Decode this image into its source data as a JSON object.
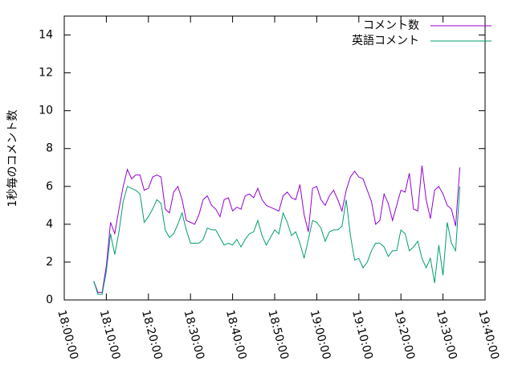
{
  "chart_data": {
    "type": "line",
    "y_label": "1秒毎のコメント数",
    "x": [
      "18:07:00",
      "18:08:00",
      "18:09:00",
      "18:10:00",
      "18:11:00",
      "18:12:00",
      "18:13:00",
      "18:14:00",
      "18:15:00",
      "18:16:00",
      "18:17:00",
      "18:18:00",
      "18:19:00",
      "18:20:00",
      "18:21:00",
      "18:22:00",
      "18:23:00",
      "18:24:00",
      "18:25:00",
      "18:26:00",
      "18:27:00",
      "18:28:00",
      "18:29:00",
      "18:30:00",
      "18:31:00",
      "18:32:00",
      "18:33:00",
      "18:34:00",
      "18:35:00",
      "18:36:00",
      "18:37:00",
      "18:38:00",
      "18:39:00",
      "18:40:00",
      "18:41:00",
      "18:42:00",
      "18:43:00",
      "18:44:00",
      "18:45:00",
      "18:46:00",
      "18:47:00",
      "18:48:00",
      "18:49:00",
      "18:50:00",
      "18:51:00",
      "18:52:00",
      "18:53:00",
      "18:54:00",
      "18:55:00",
      "18:56:00",
      "18:57:00",
      "18:58:00",
      "18:59:00",
      "19:00:00",
      "19:01:00",
      "19:02:00",
      "19:03:00",
      "19:04:00",
      "19:05:00",
      "19:06:00",
      "19:07:00",
      "19:08:00",
      "19:09:00",
      "19:10:00",
      "19:11:00",
      "19:12:00",
      "19:13:00",
      "19:14:00",
      "19:15:00",
      "19:16:00",
      "19:17:00",
      "19:18:00",
      "19:19:00",
      "19:20:00",
      "19:21:00",
      "19:22:00",
      "19:23:00",
      "19:24:00",
      "19:25:00",
      "19:26:00",
      "19:27:00",
      "19:28:00",
      "19:29:00",
      "19:30:00",
      "19:31:00",
      "19:32:00",
      "19:33:00",
      "19:34:00"
    ],
    "series": [
      {
        "name": "コメント数",
        "color": "#9400d3",
        "values": [
          1.0,
          0.4,
          0.4,
          1.8,
          4.1,
          3.5,
          4.8,
          6.0,
          6.9,
          6.4,
          6.6,
          6.6,
          5.8,
          5.9,
          6.5,
          6.6,
          6.5,
          4.8,
          4.6,
          5.7,
          6.0,
          5.3,
          4.2,
          4.1,
          4.0,
          4.5,
          5.3,
          5.5,
          5.0,
          4.8,
          4.4,
          5.3,
          5.4,
          4.7,
          4.9,
          4.8,
          5.5,
          5.6,
          5.4,
          5.9,
          5.3,
          5.0,
          4.9,
          4.8,
          4.7,
          5.5,
          5.7,
          5.4,
          5.3,
          6.1,
          4.5,
          3.6,
          5.9,
          6.0,
          5.3,
          5.0,
          5.5,
          5.8,
          5.3,
          4.7,
          5.8,
          6.5,
          6.8,
          6.5,
          6.4,
          5.8,
          5.2,
          4.0,
          4.2,
          5.6,
          5.1,
          4.2,
          5.0,
          5.8,
          5.7,
          6.7,
          4.8,
          4.7,
          7.1,
          5.3,
          4.3,
          5.8,
          6.0,
          5.6,
          5.0,
          4.8,
          3.9,
          7.0
        ]
      },
      {
        "name": "英語コメント",
        "color": "#009e73",
        "values": [
          1.0,
          0.3,
          0.3,
          1.5,
          3.5,
          2.4,
          3.6,
          5.2,
          6.0,
          5.9,
          5.8,
          5.6,
          4.1,
          4.4,
          4.8,
          5.3,
          5.1,
          3.7,
          3.3,
          3.5,
          4.0,
          4.6,
          3.7,
          3.0,
          3.0,
          3.0,
          3.2,
          3.8,
          3.7,
          3.7,
          3.3,
          2.9,
          3.0,
          2.9,
          3.2,
          2.8,
          3.2,
          3.5,
          3.6,
          4.2,
          3.4,
          2.9,
          3.3,
          3.7,
          3.5,
          4.6,
          4.1,
          3.4,
          3.6,
          3.0,
          2.2,
          3.2,
          4.2,
          4.1,
          3.8,
          3.1,
          3.6,
          3.7,
          3.7,
          3.9,
          5.3,
          3.4,
          2.1,
          2.2,
          1.7,
          2.0,
          2.6,
          3.0,
          3.0,
          2.8,
          2.3,
          2.6,
          2.6,
          3.7,
          3.5,
          2.6,
          2.8,
          3.1,
          2.2,
          1.7,
          2.2,
          0.9,
          2.9,
          1.3,
          4.1,
          3.0,
          2.6,
          6.0
        ]
      }
    ],
    "xlim": [
      "18:00:00",
      "19:40:00"
    ],
    "xticks": [
      "18:00:00",
      "18:10:00",
      "18:20:00",
      "18:30:00",
      "18:40:00",
      "18:50:00",
      "19:00:00",
      "19:10:00",
      "19:20:00",
      "19:30:00",
      "19:40:00"
    ],
    "ylim": [
      0,
      15
    ],
    "yticks": [
      0,
      2,
      4,
      6,
      8,
      10,
      12,
      14
    ],
    "legend": "top-right"
  }
}
